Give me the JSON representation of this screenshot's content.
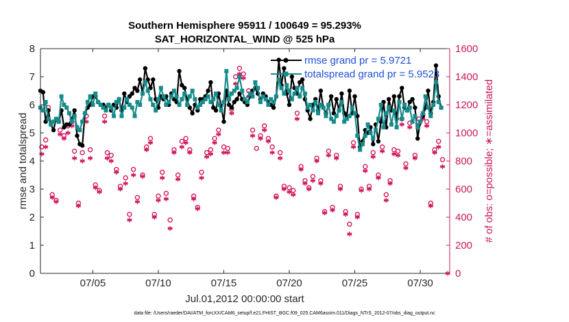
{
  "chart_data": {
    "type": "line",
    "title_line1": "Southern Hemisphere 95911 / 100649 = 95.293%",
    "title_line2": "SAT_HORIZONTAL_WIND @ 525 hPa",
    "xlabel": "Jul.01,2012 00:00:00 start",
    "ylabel": "rmse and totalspread",
    "ylabel_right": "# of obs: o=possible; ∗=assimilated",
    "footnote": "data file: /Users/raeder/DAI/ATM_forcXX/CAM6_setup/f.e21.FHIST_BGC.f09_025.CAM6assim.011/Diags_NTrS_2012-07/obs_diag_output.nc",
    "xlim": [
      1,
      32.25
    ],
    "ylim": [
      0,
      8
    ],
    "ylim_right": [
      0,
      1600
    ],
    "x_ticks": [
      5,
      10,
      15,
      20,
      25,
      30
    ],
    "x_tick_labels": [
      "07/05",
      "07/10",
      "07/15",
      "07/20",
      "07/25",
      "07/30"
    ],
    "y_ticks": [
      0,
      1,
      2,
      3,
      4,
      5,
      6,
      7,
      8
    ],
    "y_tick_labels": [
      "0",
      "1",
      "2",
      "3",
      "4",
      "5",
      "6",
      "7",
      "8"
    ],
    "y_ticks_right": [
      0,
      200,
      400,
      600,
      800,
      1000,
      1200,
      1400,
      1600
    ],
    "y_tick_labels_right": [
      "0",
      "200",
      "400",
      "600",
      "800",
      "1000",
      "1200",
      "1400",
      "1600"
    ],
    "legend": [
      "rmse grand pr = 5.9721",
      "totalspread grand pr = 5.9523"
    ],
    "colors": {
      "rmse": "#000000",
      "spread": "#178a8a",
      "obs": "#d1195e",
      "axis_right": "#c8185a"
    },
    "series": [
      {
        "name": "rmse",
        "values": [
          6.5,
          6.45,
          5.4,
          5.8,
          5.3,
          5.1,
          5.5,
          5.4,
          5.8,
          5.2,
          5.3,
          5.3,
          5.5,
          5.8,
          4.9,
          4.6,
          4.55,
          5.7,
          5.9,
          6.0,
          6.3,
          6.3,
          6.1,
          6.0,
          6.0,
          5.9,
          6.0,
          5.8,
          6.0,
          5.9,
          6.2,
          5.8,
          6.4,
          6.1,
          6.3,
          6.4,
          6.6,
          6.5,
          6.9,
          6.4,
          7.3,
          6.9,
          6.6,
          6.9,
          6.2,
          5.9,
          6.3,
          6.2,
          6.3,
          6.0,
          6.4,
          6.2,
          6.1,
          7.2,
          6.7,
          6.6,
          6.2,
          5.9,
          5.7,
          6.0,
          5.8,
          6.2,
          6.2,
          6.3,
          6.5,
          6.8,
          5.9,
          5.8,
          6.4,
          5.95,
          5.4,
          6.5,
          6.0,
          5.9,
          6.1,
          6.2,
          6.4,
          6.2,
          6.1,
          6.0,
          6.3,
          6.5,
          6.6,
          6.4,
          6.2,
          6.4,
          6.3,
          6.1,
          6.0,
          5.9,
          6.3,
          7.6,
          6.7,
          7.3,
          6.4,
          6.0,
          7.0,
          6.6,
          6.4,
          6.8,
          6.9,
          6.2,
          5.8,
          5.5,
          6.0,
          6.2,
          5.8,
          6.5,
          5.9,
          5.7,
          6.0,
          6.3,
          5.7,
          6.2,
          5.8,
          6.4,
          5.7,
          5.6,
          6.5,
          5.7,
          6.3,
          5.6,
          4.5,
          4.7,
          5.1,
          5.0,
          5.2,
          4.6,
          5.3,
          4.7,
          5.4,
          6.1,
          5.2,
          6.2,
          5.8,
          6.3,
          5.5,
          6.3,
          6.6,
          5.9,
          5.8,
          6.1,
          6.2,
          5.9,
          4.8,
          5.4,
          5.6,
          5.9,
          6.5,
          5.7,
          6.1,
          7.4,
          6.3,
          5.9
        ],
        "x_start": 1.0,
        "x_step": 0.2
      },
      {
        "name": "totalspread",
        "values": [
          5.9,
          5.8,
          6.1,
          5.5,
          5.3,
          5.4,
          5.5,
          5.4,
          6.3,
          6.0,
          5.9,
          5.7,
          5.4,
          5.6,
          5.2,
          5.1,
          5.4,
          5.7,
          6.1,
          6.3,
          6.0,
          6.4,
          6.1,
          6.0,
          5.9,
          5.8,
          6.0,
          5.9,
          5.6,
          6.1,
          6.2,
          5.6,
          5.9,
          6.2,
          6.0,
          5.9,
          5.6,
          6.1,
          6.0,
          6.4,
          6.8,
          6.5,
          6.2,
          6.0,
          5.8,
          6.2,
          6.6,
          6.3,
          6.0,
          6.1,
          6.3,
          6.5,
          6.3,
          6.0,
          6.2,
          6.4,
          6.0,
          6.3,
          6.5,
          6.2,
          5.9,
          6.0,
          6.1,
          6.2,
          6.3,
          6.1,
          6.2,
          6.4,
          6.0,
          5.8,
          6.1,
          7.2,
          6.2,
          6.4,
          6.5,
          6.6,
          7.0,
          6.5,
          6.2,
          6.1,
          6.4,
          6.3,
          6.8,
          6.6,
          6.1,
          6.3,
          6.2,
          6.0,
          6.2,
          6.1,
          6.3,
          6.9,
          6.6,
          6.4,
          6.7,
          6.5,
          6.2,
          6.4,
          6.6,
          6.3,
          6.6,
          6.4,
          5.9,
          6.0,
          5.8,
          6.1,
          5.7,
          6.0,
          5.9,
          5.6,
          6.0,
          5.5,
          5.4,
          5.6,
          5.8,
          6.1,
          5.4,
          5.5,
          5.6,
          5.9,
          5.7,
          4.9,
          4.4,
          4.6,
          4.9,
          5.3,
          5.0,
          4.8,
          5.1,
          5.5,
          6.0,
          5.2,
          5.7,
          5.9,
          5.3,
          5.8,
          5.2,
          6.1,
          5.5,
          6.0,
          5.8,
          5.9,
          5.4,
          5.6,
          5.2,
          5.4,
          5.7,
          6.3,
          5.9,
          5.6,
          6.0,
          6.8,
          6.1,
          5.9
        ],
        "x_start": 1.0,
        "x_step": 0.2
      },
      {
        "name": "obs_possible",
        "points": [
          [
            1.1,
            900
          ],
          [
            1.4,
            950
          ],
          [
            1.6,
            1180
          ],
          [
            1.9,
            560
          ],
          [
            2.2,
            520
          ],
          [
            2.5,
            1020
          ],
          [
            2.8,
            980
          ],
          [
            3.1,
            1050
          ],
          [
            3.4,
            1080
          ],
          [
            3.6,
            870
          ],
          [
            3.9,
            500
          ],
          [
            4.2,
            860
          ],
          [
            4.5,
            1120
          ],
          [
            4.8,
            880
          ],
          [
            5.2,
            630
          ],
          [
            5.5,
            590
          ],
          [
            5.9,
            1120
          ],
          [
            6.1,
            860
          ],
          [
            6.4,
            840
          ],
          [
            6.8,
            740
          ],
          [
            7.1,
            620
          ],
          [
            7.5,
            680
          ],
          [
            7.8,
            420
          ],
          [
            8.1,
            740
          ],
          [
            8.4,
            540
          ],
          [
            8.8,
            700
          ],
          [
            9.1,
            900
          ],
          [
            9.4,
            960
          ],
          [
            9.7,
            420
          ],
          [
            10.0,
            550
          ],
          [
            10.3,
            720
          ],
          [
            10.6,
            570
          ],
          [
            10.9,
            380
          ],
          [
            11.2,
            880
          ],
          [
            11.5,
            700
          ],
          [
            11.8,
            940
          ],
          [
            12.1,
            960
          ],
          [
            12.4,
            880
          ],
          [
            12.7,
            550
          ],
          [
            13.0,
            470
          ],
          [
            13.3,
            720
          ],
          [
            13.7,
            860
          ],
          [
            14.0,
            880
          ],
          [
            14.3,
            960
          ],
          [
            14.6,
            1020
          ],
          [
            15.0,
            900
          ],
          [
            15.3,
            890
          ],
          [
            15.6,
            1170
          ],
          [
            15.9,
            1400
          ],
          [
            16.2,
            1460
          ],
          [
            16.5,
            1420
          ],
          [
            16.9,
            1300
          ],
          [
            17.2,
            1020
          ],
          [
            17.5,
            890
          ],
          [
            17.8,
            980
          ],
          [
            18.1,
            1050
          ],
          [
            18.4,
            960
          ],
          [
            18.7,
            900
          ],
          [
            19.0,
            550
          ],
          [
            19.3,
            860
          ],
          [
            19.6,
            620
          ],
          [
            20.0,
            610
          ],
          [
            20.3,
            590
          ],
          [
            20.6,
            1140
          ],
          [
            20.9,
            760
          ],
          [
            21.2,
            660
          ],
          [
            21.5,
            610
          ],
          [
            21.8,
            690
          ],
          [
            22.1,
            820
          ],
          [
            22.4,
            660
          ],
          [
            22.7,
            440
          ],
          [
            23.0,
            870
          ],
          [
            23.3,
            470
          ],
          [
            23.6,
            840
          ],
          [
            23.9,
            620
          ],
          [
            24.3,
            440
          ],
          [
            24.6,
            350
          ],
          [
            24.9,
            930
          ],
          [
            25.2,
            420
          ],
          [
            25.5,
            600
          ],
          [
            25.8,
            760
          ],
          [
            26.1,
            620
          ],
          [
            26.4,
            860
          ],
          [
            26.8,
            700
          ],
          [
            27.1,
            900
          ],
          [
            27.4,
            560
          ],
          [
            27.7,
            660
          ],
          [
            28.0,
            880
          ],
          [
            28.3,
            870
          ],
          [
            28.6,
            1100
          ],
          [
            28.9,
            780
          ],
          [
            29.2,
            1070
          ],
          [
            29.6,
            840
          ],
          [
            29.9,
            1100
          ],
          [
            30.2,
            1130
          ],
          [
            30.5,
            1080
          ],
          [
            30.8,
            500
          ],
          [
            31.1,
            880
          ],
          [
            31.4,
            940
          ],
          [
            31.7,
            810
          ]
        ]
      },
      {
        "name": "obs_assimilated",
        "points": [
          [
            1.1,
            850
          ],
          [
            1.4,
            900
          ],
          [
            1.6,
            1160
          ],
          [
            1.9,
            540
          ],
          [
            2.2,
            510
          ],
          [
            2.5,
            990
          ],
          [
            2.8,
            960
          ],
          [
            3.1,
            1000
          ],
          [
            3.4,
            1050
          ],
          [
            3.6,
            820
          ],
          [
            3.9,
            480
          ],
          [
            4.2,
            800
          ],
          [
            4.5,
            1080
          ],
          [
            4.8,
            820
          ],
          [
            5.2,
            610
          ],
          [
            5.5,
            580
          ],
          [
            5.9,
            1080
          ],
          [
            6.1,
            820
          ],
          [
            6.4,
            800
          ],
          [
            6.8,
            720
          ],
          [
            7.1,
            600
          ],
          [
            7.5,
            640
          ],
          [
            7.8,
            380
          ],
          [
            8.1,
            700
          ],
          [
            8.4,
            510
          ],
          [
            8.8,
            690
          ],
          [
            9.1,
            880
          ],
          [
            9.4,
            930
          ],
          [
            9.7,
            400
          ],
          [
            10.0,
            520
          ],
          [
            10.3,
            680
          ],
          [
            10.6,
            530
          ],
          [
            10.9,
            320
          ],
          [
            11.2,
            860
          ],
          [
            11.5,
            670
          ],
          [
            11.8,
            900
          ],
          [
            12.1,
            930
          ],
          [
            12.4,
            860
          ],
          [
            12.7,
            530
          ],
          [
            13.0,
            460
          ],
          [
            13.3,
            680
          ],
          [
            13.7,
            830
          ],
          [
            14.0,
            850
          ],
          [
            14.3,
            930
          ],
          [
            14.6,
            990
          ],
          [
            15.0,
            860
          ],
          [
            15.3,
            860
          ],
          [
            15.6,
            1140
          ],
          [
            15.9,
            1350
          ],
          [
            16.2,
            1420
          ],
          [
            16.5,
            1390
          ],
          [
            16.9,
            1260
          ],
          [
            17.2,
            980
          ],
          [
            17.8,
            960
          ],
          [
            18.1,
            1020
          ],
          [
            18.4,
            940
          ],
          [
            18.7,
            860
          ],
          [
            19.0,
            540
          ],
          [
            19.3,
            820
          ],
          [
            19.6,
            600
          ],
          [
            20.0,
            580
          ],
          [
            20.3,
            560
          ],
          [
            20.6,
            1100
          ],
          [
            20.9,
            740
          ],
          [
            21.2,
            640
          ],
          [
            21.5,
            600
          ],
          [
            21.8,
            660
          ],
          [
            22.1,
            800
          ],
          [
            22.4,
            640
          ],
          [
            22.7,
            430
          ],
          [
            23.0,
            840
          ],
          [
            23.3,
            450
          ],
          [
            23.6,
            820
          ],
          [
            23.9,
            600
          ],
          [
            24.3,
            420
          ],
          [
            24.6,
            280
          ],
          [
            24.9,
            900
          ],
          [
            25.2,
            400
          ],
          [
            25.5,
            590
          ],
          [
            25.8,
            730
          ],
          [
            26.1,
            600
          ],
          [
            26.4,
            830
          ],
          [
            26.8,
            680
          ],
          [
            27.1,
            870
          ],
          [
            27.4,
            520
          ],
          [
            27.7,
            640
          ],
          [
            28.0,
            850
          ],
          [
            28.3,
            840
          ],
          [
            28.6,
            1060
          ],
          [
            28.9,
            750
          ],
          [
            29.2,
            1040
          ],
          [
            29.6,
            820
          ],
          [
            29.9,
            1060
          ],
          [
            30.2,
            1100
          ],
          [
            30.5,
            1050
          ],
          [
            30.8,
            480
          ],
          [
            31.1,
            860
          ],
          [
            31.4,
            900
          ],
          [
            31.7,
            760
          ],
          [
            32.1,
            0
          ]
        ]
      }
    ]
  }
}
